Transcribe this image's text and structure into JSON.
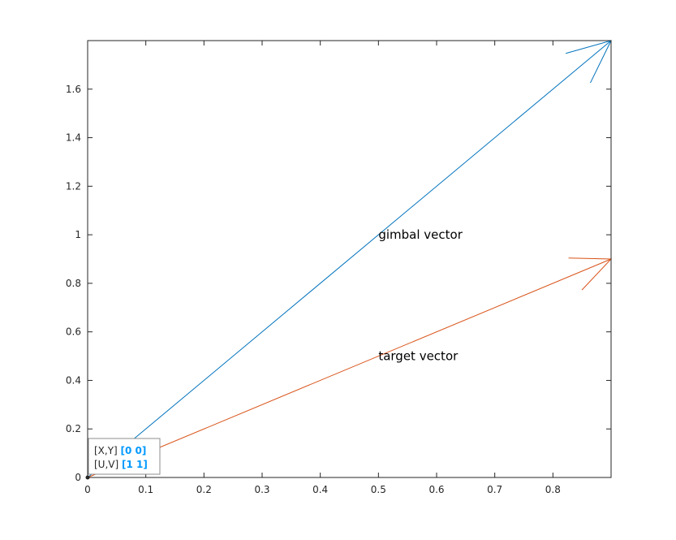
{
  "chart_data": {
    "type": "quiver",
    "xlim": [
      0,
      0.9
    ],
    "ylim": [
      0,
      1.8
    ],
    "xticks": [
      0,
      0.1,
      0.2,
      0.3,
      0.4,
      0.5,
      0.6,
      0.7,
      0.8
    ],
    "yticks": [
      0,
      0.2,
      0.4,
      0.6,
      0.8,
      1,
      1.2,
      1.4,
      1.6
    ],
    "xtick_labels": [
      "0",
      "0.1",
      "0.2",
      "0.3",
      "0.4",
      "0.5",
      "0.6",
      "0.7",
      "0.8"
    ],
    "ytick_labels": [
      "0",
      "0.2",
      "0.4",
      "0.6",
      "0.8",
      "1",
      "1.2",
      "1.4",
      "1.6"
    ],
    "grid": false,
    "box": true,
    "series": [
      {
        "x": 0,
        "y": 0,
        "u": 0.9,
        "v": 1.8,
        "color": "#0072BD"
      },
      {
        "x": 0,
        "y": 0,
        "u": 0.9,
        "v": 0.9,
        "color": "#D95319"
      }
    ],
    "annotations": [
      {
        "text": "gimbal vector",
        "x": 0.5,
        "y": 1.0
      },
      {
        "text": "target vector",
        "x": 0.5,
        "y": 0.5
      }
    ],
    "datatip": {
      "xy_label": "[X,Y]",
      "xy_value": "[0 0]",
      "uv_label": "[U,V]",
      "uv_value": "[1 1]",
      "value_color": "#0099FF",
      "anchor_x": 0,
      "anchor_y": 0
    },
    "axis_color": "#262626",
    "background": "#ffffff"
  }
}
